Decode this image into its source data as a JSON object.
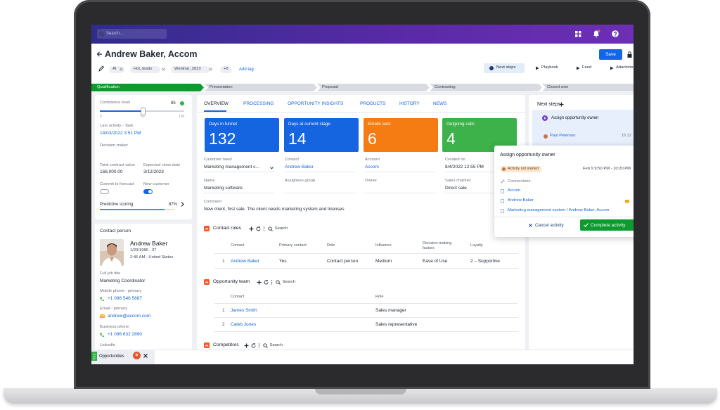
{
  "topbar": {
    "search": "Search..."
  },
  "header": {
    "title": "Andrew Baker, Accom",
    "save": "Save",
    "tags": [
      "AI",
      "Hot_leads",
      "Webinar_2023"
    ],
    "more_tags": "+6",
    "add_tag": "Add tag",
    "actions": [
      "Next steps",
      "Playbook",
      "Feed",
      "Attachments"
    ]
  },
  "stages": [
    "Qualification",
    "Presentation",
    "Proposal",
    "Contracting",
    "Closed won"
  ],
  "summary": {
    "confidence": {
      "label": "Confidence level",
      "value": 85,
      "scale": [
        0,
        50,
        100
      ]
    },
    "last_activity": {
      "label": "Last activity - Task",
      "value": "14/03/2022 3:51 PM"
    },
    "decision_maker": "Decision maker",
    "total_value": {
      "label": "Total contract value",
      "value": "168,000.00"
    },
    "close_date": {
      "label": "Expected close date",
      "value": "3/12/2023"
    },
    "commit": "Commit to forecast",
    "new_customer": "New customer",
    "scoring": {
      "label": "Predictive scoring",
      "value": "87%"
    }
  },
  "contact": {
    "heading": "Contact person",
    "name": "Andrew Baker",
    "birth": "1/20/1986 - 37",
    "local_time": "2:46 AM - United States",
    "fields": [
      {
        "label": "Full job title",
        "value": "Marketing Coordinator"
      },
      {
        "label": "Mobile phone - primary",
        "value": "+1 096 546 5687"
      },
      {
        "label": "Email - primary",
        "value": "andrew@accom.com"
      },
      {
        "label": "Business phone",
        "value": "+1 096 632 2890"
      }
    ],
    "linkedin": "LinkedIn"
  },
  "tabs": [
    "OVERVIEW",
    "PROCESSING",
    "OPPORTUNITY INSIGHTS",
    "PRODUCTS",
    "HISTORY",
    "NEWS"
  ],
  "kpis": [
    {
      "label": "Days in funnel",
      "value": 132
    },
    {
      "label": "Days at current stage",
      "value": 14
    },
    {
      "label": "Emails sent",
      "value": 6
    },
    {
      "label": "Outgoing calls",
      "value": 4
    }
  ],
  "fields": [
    {
      "label": "Customer need",
      "value": "Marketing management s..."
    },
    {
      "label": "Contact",
      "value": "Andrew Baker"
    },
    {
      "label": "Account",
      "value": "Accom"
    },
    {
      "label": "Created on",
      "value": "8/4/2022 12:55 PM"
    },
    {
      "label": "Name",
      "value": "Marketing software"
    },
    {
      "label": "Assignees group"
    },
    {
      "label": "Owner"
    },
    {
      "label": "Sales channel",
      "value": "Direct sale"
    },
    {
      "label": "Comment",
      "value": "New client, first sale. The client needs marketing system and licenses"
    }
  ],
  "contact_roles": {
    "title": "Contact roles",
    "search": "Search",
    "columns": [
      "Contact",
      "Primary contact",
      "Role",
      "Influence",
      "Decision-making factors",
      "Loyalty"
    ],
    "rows": [
      {
        "index": 1,
        "cells": [
          "Andrew Baker",
          "Yes",
          "Contact person",
          "Medium",
          "Ease of Use",
          "2 – Supportive"
        ]
      }
    ]
  },
  "team": {
    "title": "Opportunity team",
    "search": "Search",
    "columns": [
      "Contact",
      "Role"
    ],
    "rows": [
      {
        "index": 1,
        "cells": [
          "James Smith",
          "Sales manager"
        ]
      },
      {
        "index": 2,
        "cells": [
          "Caleb Jones",
          "Sales representative"
        ]
      }
    ]
  },
  "competitors": {
    "title": "Competitors",
    "search": "Search"
  },
  "next_steps": {
    "title": "Next steps",
    "item": "Assign opportunity owner",
    "person": "Paul Peterson",
    "time": "15:12"
  },
  "popup": {
    "title": "Assign opportunity owner",
    "status": "Activity not started",
    "when": "Feb 9 9:50 PM - 10:20 PM",
    "connections_label": "Connections:",
    "connections": [
      "Accom",
      "Andrew Baker",
      "Marketing management system / Andrew Baker, Accom"
    ],
    "cancel": "Cancel activity",
    "complete": "Complete activity"
  },
  "footer": {
    "tab": "Opportunities"
  }
}
